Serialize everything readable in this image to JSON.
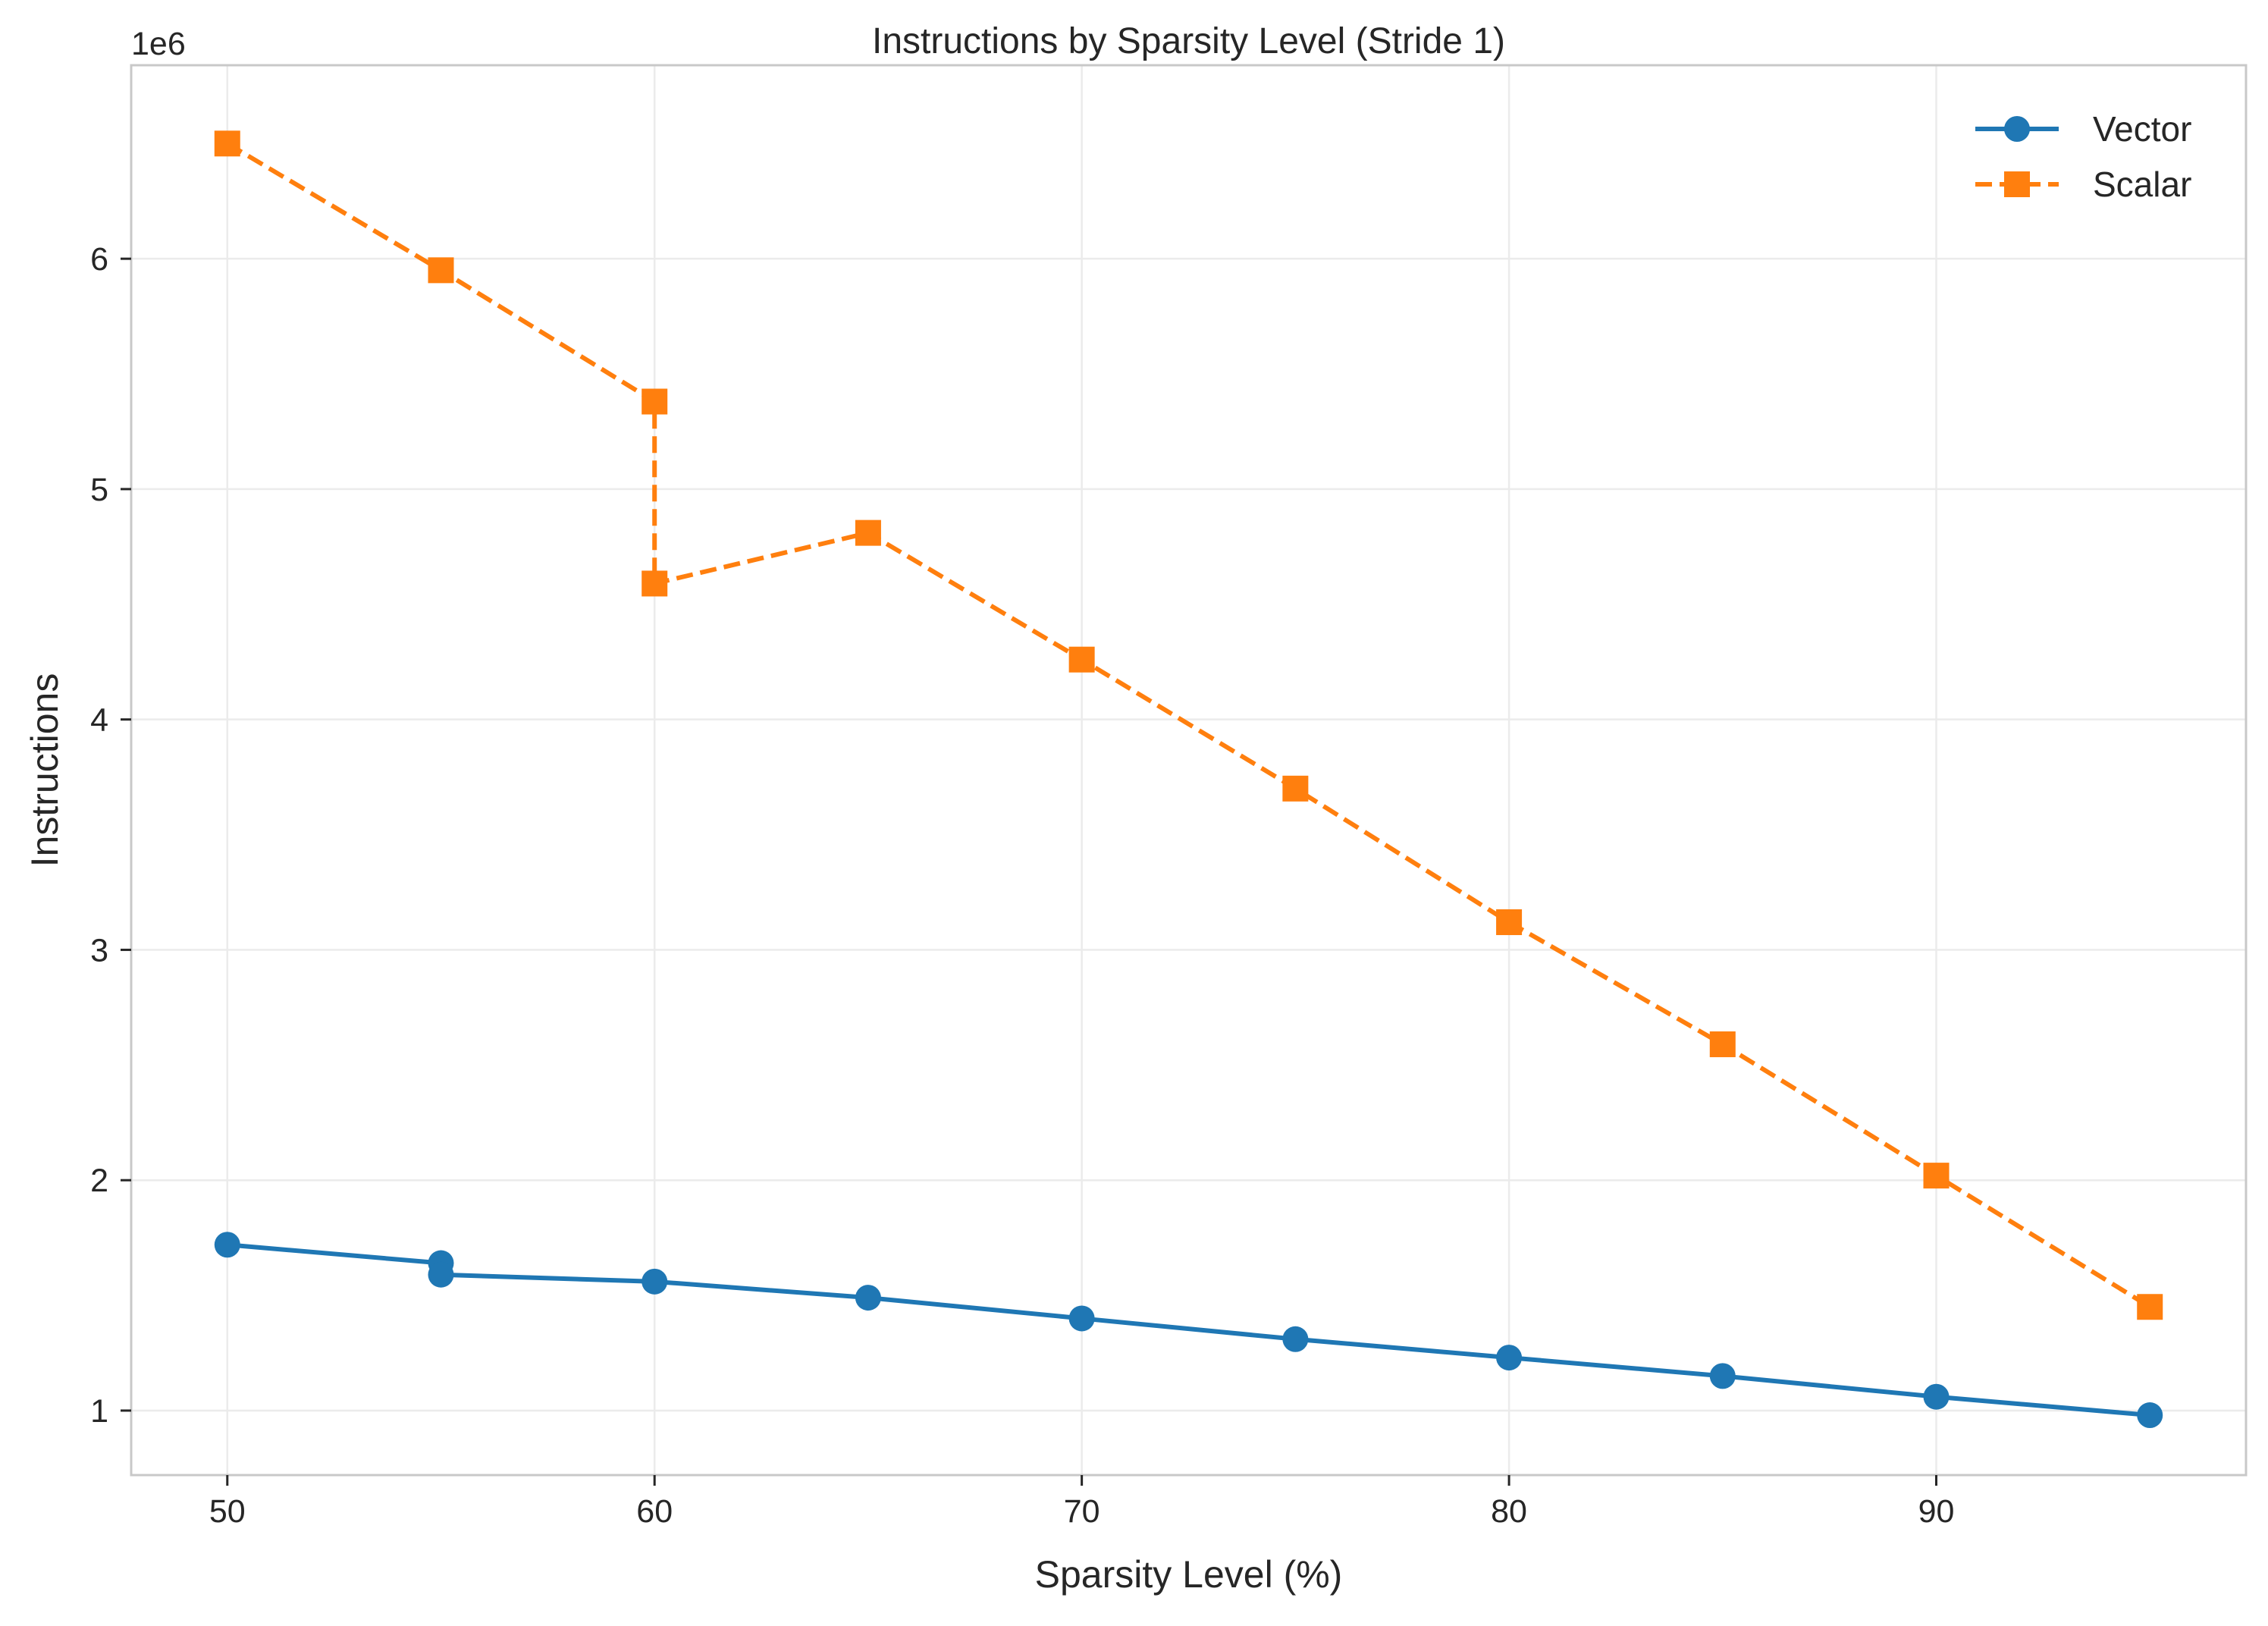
{
  "chart_data": {
    "type": "line",
    "title": "Instructions by Sparsity Level (Stride 1)",
    "xlabel": "Sparsity Level (%)",
    "ylabel": "Instructions",
    "y_offset_label": "1e6",
    "xlim": [
      47.75,
      97.25
    ],
    "ylim": [
      0.72,
      6.84
    ],
    "y_scale_factor": 1000000,
    "x_ticks": [
      50,
      60,
      70,
      80,
      90
    ],
    "x_tick_labels": [
      "50",
      "60",
      "70",
      "80",
      "90"
    ],
    "y_ticks": [
      1,
      2,
      3,
      4,
      5,
      6
    ],
    "y_tick_labels": [
      "1",
      "2",
      "3",
      "4",
      "5",
      "6"
    ],
    "grid": true,
    "legend_position": "top-right",
    "series": [
      {
        "name": "Vector",
        "color": "#1f77b4",
        "line_style": "solid",
        "marker": "circle",
        "x": [
          50,
          55,
          55,
          60,
          65,
          70,
          75,
          80,
          85,
          90,
          95
        ],
        "y": [
          1.72,
          1.64,
          1.59,
          1.56,
          1.49,
          1.4,
          1.31,
          1.23,
          1.15,
          1.06,
          0.98
        ]
      },
      {
        "name": "Scalar",
        "color": "#ff7f0e",
        "line_style": "dashed",
        "marker": "square",
        "x": [
          50,
          55,
          60,
          60,
          65,
          70,
          75,
          80,
          85,
          90,
          95
        ],
        "y": [
          6.5,
          5.95,
          5.38,
          4.59,
          4.81,
          4.26,
          3.7,
          3.12,
          2.59,
          2.02,
          1.45
        ]
      }
    ]
  }
}
